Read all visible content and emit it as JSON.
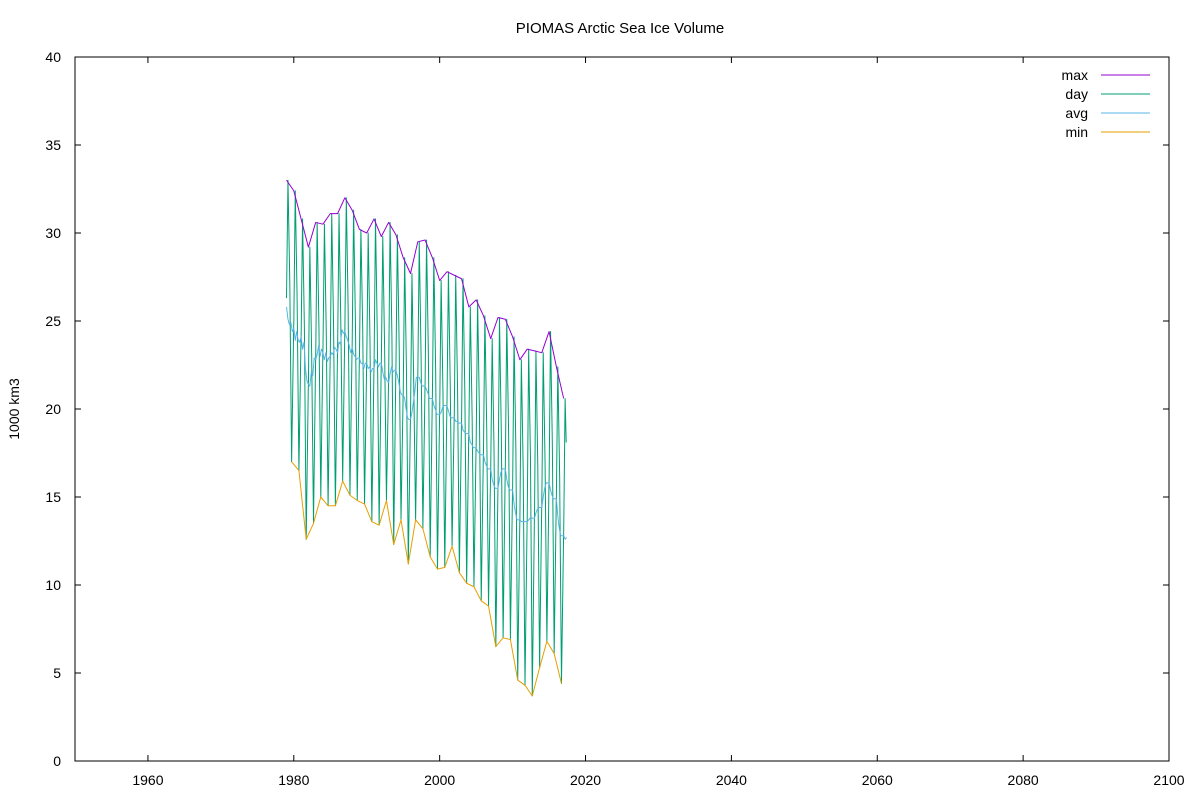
{
  "chart_data": {
    "type": "line",
    "title": "PIOMAS Arctic Sea Ice Volume",
    "xlabel": "",
    "ylabel": "1000 km3",
    "xlim": [
      1950,
      2100
    ],
    "ylim": [
      0,
      40
    ],
    "x_ticks": [
      1960,
      1980,
      2000,
      2020,
      2040,
      2060,
      2080,
      2100
    ],
    "y_ticks": [
      0,
      5,
      10,
      15,
      20,
      25,
      30,
      35,
      40
    ],
    "grid": false,
    "legend_position": "top-right",
    "series": [
      {
        "name": "max",
        "color": "#9400d3",
        "x": [
          1979,
          1980,
          1981,
          1982,
          1983,
          1984,
          1985,
          1986,
          1987,
          1988,
          1989,
          1990,
          1991,
          1992,
          1993,
          1994,
          1995,
          1996,
          1997,
          1998,
          1999,
          2000,
          2001,
          2002,
          2003,
          2004,
          2005,
          2006,
          2007,
          2008,
          2009,
          2010,
          2011,
          2012,
          2013,
          2014,
          2015,
          2016,
          2017
        ],
        "y": [
          33.0,
          32.4,
          30.8,
          29.2,
          30.6,
          30.5,
          31.1,
          31.1,
          32.0,
          31.3,
          30.2,
          30.0,
          30.8,
          29.8,
          30.6,
          29.9,
          28.6,
          27.7,
          29.5,
          29.6,
          28.6,
          27.3,
          27.8,
          27.6,
          27.4,
          25.8,
          26.2,
          25.3,
          24.0,
          25.2,
          25.1,
          24.1,
          22.8,
          23.4,
          23.3,
          23.2,
          24.4,
          22.4,
          20.6
        ]
      },
      {
        "name": "day",
        "color": "#009e73",
        "x": [
          1979.0,
          1979.2,
          1979.45,
          1979.7,
          1979.99,
          1980.0,
          1980.2,
          1980.45,
          1980.7,
          1980.99,
          1981.0,
          1981.2,
          1981.45,
          1981.7,
          1981.99,
          1982.0,
          1982.2,
          1982.45,
          1982.7,
          1982.99,
          1983.0,
          1983.2,
          1983.45,
          1983.7,
          1983.99,
          1984.0,
          1984.2,
          1984.45,
          1984.7,
          1984.99,
          1985.0,
          1985.2,
          1985.45,
          1985.7,
          1985.99,
          1986.0,
          1986.2,
          1986.45,
          1986.7,
          1986.99,
          1987.0,
          1987.2,
          1987.45,
          1987.7,
          1987.99,
          1988.0,
          1988.2,
          1988.45,
          1988.7,
          1988.99,
          1989.0,
          1989.2,
          1989.45,
          1989.7,
          1989.99,
          1990.0,
          1990.2,
          1990.45,
          1990.7,
          1990.99,
          1991.0,
          1991.2,
          1991.45,
          1991.7,
          1991.99,
          1992.0,
          1992.2,
          1992.45,
          1992.7,
          1992.99,
          1993.0,
          1993.2,
          1993.45,
          1993.7,
          1993.99,
          1994.0,
          1994.2,
          1994.45,
          1994.7,
          1994.99,
          1995.0,
          1995.2,
          1995.45,
          1995.7,
          1995.99,
          1996.0,
          1996.2,
          1996.45,
          1996.7,
          1996.99,
          1997.0,
          1997.2,
          1997.45,
          1997.7,
          1997.99,
          1998.0,
          1998.2,
          1998.45,
          1998.7,
          1998.99,
          1999.0,
          1999.2,
          1999.45,
          1999.7,
          1999.99,
          2000.0,
          2000.2,
          2000.45,
          2000.7,
          2000.99,
          2001.0,
          2001.2,
          2001.45,
          2001.7,
          2001.99,
          2002.0,
          2002.2,
          2002.45,
          2002.7,
          2002.99,
          2003.0,
          2003.2,
          2003.45,
          2003.7,
          2003.99,
          2004.0,
          2004.2,
          2004.45,
          2004.7,
          2004.99,
          2005.0,
          2005.2,
          2005.45,
          2005.7,
          2005.99,
          2006.0,
          2006.2,
          2006.45,
          2006.7,
          2006.99,
          2007.0,
          2007.2,
          2007.45,
          2007.7,
          2007.99,
          2008.0,
          2008.2,
          2008.45,
          2008.7,
          2008.99,
          2009.0,
          2009.2,
          2009.45,
          2009.7,
          2009.99,
          2010.0,
          2010.2,
          2010.45,
          2010.7,
          2010.99,
          2011.0,
          2011.2,
          2011.45,
          2011.7,
          2011.99,
          2012.0,
          2012.2,
          2012.45,
          2012.7,
          2012.99,
          2013.0,
          2013.2,
          2013.45,
          2013.7,
          2013.99,
          2014.0,
          2014.2,
          2014.45,
          2014.7,
          2014.99,
          2015.0,
          2015.2,
          2015.45,
          2015.7,
          2015.99,
          2016.0,
          2016.2,
          2016.45,
          2016.7,
          2016.99,
          2017.0,
          2017.2,
          2017.35
        ],
        "y": [
          26.3,
          33.0,
          27.2,
          17.0,
          24.8,
          24.8,
          32.4,
          26.4,
          16.5,
          24.0,
          24.0,
          30.8,
          24.7,
          12.6,
          21.3,
          21.3,
          29.2,
          23.1,
          13.5,
          22.8,
          22.8,
          30.6,
          24.6,
          15.0,
          23.4,
          23.4,
          30.5,
          24.4,
          14.5,
          22.9,
          22.9,
          31.1,
          24.8,
          14.5,
          23.1,
          23.1,
          31.1,
          24.8,
          15.9,
          24.4,
          24.4,
          32.0,
          25.7,
          15.1,
          23.5,
          23.5,
          31.3,
          24.9,
          14.8,
          22.9,
          22.9,
          30.2,
          24.5,
          14.6,
          22.6,
          22.6,
          30.0,
          23.8,
          13.6,
          22.3,
          22.3,
          30.8,
          24.2,
          13.4,
          22.6,
          22.6,
          29.8,
          23.5,
          14.8,
          21.5,
          21.5,
          30.6,
          24.2,
          12.3,
          22.2,
          22.2,
          29.9,
          23.5,
          13.7,
          20.8,
          20.8,
          28.6,
          22.1,
          11.2,
          19.4,
          19.4,
          27.7,
          21.3,
          13.7,
          21.8,
          21.8,
          29.5,
          23.1,
          13.2,
          21.3,
          21.3,
          29.6,
          23.2,
          11.6,
          20.6,
          20.6,
          28.6,
          22.2,
          10.9,
          19.7,
          19.7,
          27.3,
          21.0,
          11.0,
          20.2,
          20.2,
          27.8,
          21.4,
          12.2,
          19.5,
          19.5,
          27.6,
          21.2,
          10.7,
          19.2,
          19.2,
          27.4,
          21.0,
          10.1,
          18.6,
          18.6,
          25.8,
          19.6,
          9.9,
          17.8,
          17.8,
          26.2,
          19.8,
          9.1,
          17.4,
          17.4,
          25.3,
          18.9,
          8.8,
          16.6,
          16.6,
          24.0,
          17.8,
          6.5,
          15.5,
          15.5,
          25.2,
          18.7,
          7.0,
          16.6,
          16.6,
          25.1,
          18.7,
          6.9,
          15.4,
          15.4,
          24.1,
          17.7,
          4.6,
          13.7,
          13.7,
          22.8,
          16.6,
          4.3,
          13.6,
          13.6,
          23.4,
          17.2,
          3.7,
          13.8,
          13.8,
          23.3,
          16.9,
          5.3,
          14.4,
          14.4,
          23.2,
          17.0,
          6.8,
          15.8,
          15.8,
          24.4,
          18.0,
          6.1,
          14.9,
          14.9,
          22.4,
          16.2,
          4.4,
          12.8,
          12.8,
          20.6,
          18.1
        ]
      },
      {
        "name": "avg",
        "color": "#56b4e9",
        "x": [
          1979.0,
          1979.2,
          1979.4,
          1979.6,
          1979.8,
          1980.0,
          1980.2,
          1980.4,
          1980.6,
          1980.8,
          1981.0,
          1981.2,
          1981.4,
          1981.6,
          1981.8,
          1982.0,
          1982.2,
          1982.4,
          1982.6,
          1982.8,
          1983.0,
          1983.2,
          1983.4,
          1983.6,
          1983.8,
          1984.0,
          1984.2,
          1984.4,
          1984.6,
          1984.8,
          1985.0,
          1985.2,
          1985.4,
          1985.6,
          1985.8,
          1986.0,
          1986.2,
          1986.4,
          1986.6,
          1986.8,
          1987.0,
          1987.2,
          1987.4,
          1987.6,
          1987.8,
          1988.0,
          1988.2,
          1988.4,
          1988.6,
          1988.8,
          1989.0,
          1989.2,
          1989.4,
          1989.6,
          1989.8,
          1990.0,
          1990.2,
          1990.4,
          1990.6,
          1990.8,
          1991.0,
          1991.2,
          1991.4,
          1991.6,
          1991.8,
          1992.0,
          1992.2,
          1992.4,
          1992.6,
          1992.8,
          1993.0,
          1993.2,
          1993.4,
          1993.6,
          1993.8,
          1994.0,
          1994.2,
          1994.4,
          1994.6,
          1994.8,
          1995.0,
          1995.2,
          1995.4,
          1995.6,
          1995.8,
          1996.0,
          1996.2,
          1996.4,
          1996.6,
          1996.8,
          1997.0,
          1997.2,
          1997.4,
          1997.6,
          1997.8,
          1998.0,
          1998.2,
          1998.4,
          1998.6,
          1998.8,
          1999.0,
          1999.2,
          1999.4,
          1999.6,
          1999.8,
          2000.0,
          2000.2,
          2000.4,
          2000.6,
          2000.8,
          2001.0,
          2001.2,
          2001.4,
          2001.6,
          2001.8,
          2002.0,
          2002.2,
          2002.4,
          2002.6,
          2002.8,
          2003.0,
          2003.2,
          2003.4,
          2003.6,
          2003.8,
          2004.0,
          2004.2,
          2004.4,
          2004.6,
          2004.8,
          2005.0,
          2005.2,
          2005.4,
          2005.6,
          2005.8,
          2006.0,
          2006.2,
          2006.4,
          2006.6,
          2006.8,
          2007.0,
          2007.2,
          2007.4,
          2007.6,
          2007.8,
          2008.0,
          2008.2,
          2008.4,
          2008.6,
          2008.8,
          2009.0,
          2009.2,
          2009.4,
          2009.6,
          2009.8,
          2010.0,
          2010.2,
          2010.4,
          2010.6,
          2010.8,
          2011.0,
          2011.2,
          2011.4,
          2011.6,
          2011.8,
          2012.0,
          2012.2,
          2012.4,
          2012.6,
          2012.8,
          2013.0,
          2013.2,
          2013.4,
          2013.6,
          2013.8,
          2014.0,
          2014.2,
          2014.4,
          2014.6,
          2014.8,
          2015.0,
          2015.2,
          2015.4,
          2015.6,
          2015.8,
          2016.0,
          2016.2,
          2016.4,
          2016.6,
          2016.8,
          2017.0,
          2017.2,
          2017.4
        ],
        "y": [
          25.8,
          25.1,
          24.8,
          24.9,
          24.4,
          24.6,
          23.9,
          24.4,
          23.9,
          23.8,
          24.1,
          23.4,
          23.8,
          22.3,
          21.6,
          21.4,
          21.3,
          22.1,
          21.9,
          22.9,
          22.8,
          23.1,
          23.6,
          23.0,
          23.4,
          23.2,
          22.8,
          23.2,
          22.7,
          22.9,
          23.0,
          23.2,
          23.1,
          23.5,
          23.4,
          23.2,
          23.8,
          23.7,
          24.5,
          24.3,
          24.4,
          24.1,
          23.9,
          23.6,
          23.2,
          23.5,
          23.1,
          23.0,
          22.8,
          22.9,
          22.9,
          22.6,
          22.6,
          22.3,
          22.6,
          22.6,
          22.3,
          22.4,
          22.1,
          22.3,
          22.3,
          22.8,
          22.6,
          22.4,
          22.6,
          22.6,
          22.1,
          21.7,
          21.8,
          21.6,
          21.5,
          22.0,
          22.4,
          22.1,
          22.2,
          22.2,
          21.9,
          21.5,
          21.0,
          20.8,
          20.8,
          20.6,
          20.0,
          19.5,
          19.4,
          19.4,
          19.8,
          20.4,
          21.0,
          21.8,
          21.8,
          21.8,
          21.5,
          21.3,
          21.3,
          21.3,
          21.1,
          20.9,
          20.6,
          20.6,
          20.6,
          20.2,
          20.0,
          19.7,
          19.7,
          19.7,
          19.8,
          20.1,
          20.2,
          20.2,
          20.2,
          19.9,
          19.6,
          19.5,
          19.5,
          19.5,
          19.3,
          19.3,
          19.2,
          19.2,
          19.2,
          18.8,
          18.7,
          18.6,
          18.6,
          18.6,
          18.1,
          18.0,
          17.8,
          17.8,
          17.8,
          17.6,
          17.5,
          17.4,
          17.4,
          17.4,
          17.0,
          16.8,
          16.6,
          16.6,
          16.6,
          16.0,
          15.7,
          15.5,
          15.5,
          15.5,
          16.0,
          16.4,
          16.6,
          16.6,
          16.6,
          16.0,
          15.6,
          15.4,
          15.4,
          15.4,
          14.6,
          14.1,
          13.7,
          13.7,
          13.7,
          13.6,
          13.6,
          13.6,
          13.6,
          13.6,
          13.7,
          13.8,
          13.8,
          13.8,
          13.8,
          14.1,
          14.3,
          14.4,
          14.4,
          14.4,
          15.0,
          15.5,
          15.8,
          15.8,
          15.8,
          15.4,
          15.1,
          14.9,
          14.9,
          14.9,
          13.9,
          13.2,
          12.8,
          12.8,
          12.8,
          12.6,
          12.7
        ]
      },
      {
        "name": "min",
        "color": "#e69f00",
        "x": [
          1979.7,
          1980.7,
          1981.7,
          1982.7,
          1983.7,
          1984.7,
          1985.7,
          1986.7,
          1987.7,
          1988.7,
          1989.7,
          1990.7,
          1991.7,
          1992.7,
          1993.7,
          1994.7,
          1995.7,
          1996.7,
          1997.7,
          1998.7,
          1999.7,
          2000.7,
          2001.7,
          2002.7,
          2003.7,
          2004.7,
          2005.7,
          2006.7,
          2007.7,
          2008.7,
          2009.7,
          2010.7,
          2011.7,
          2012.7,
          2013.7,
          2014.7,
          2015.7,
          2016.7
        ],
        "y": [
          17.0,
          16.5,
          12.6,
          13.5,
          15.0,
          14.5,
          14.5,
          15.9,
          15.1,
          14.8,
          14.6,
          13.6,
          13.4,
          14.8,
          12.3,
          13.7,
          11.2,
          13.7,
          13.2,
          11.6,
          10.9,
          11.0,
          12.2,
          10.7,
          10.1,
          9.9,
          9.1,
          8.8,
          6.5,
          7.0,
          6.9,
          4.6,
          4.3,
          3.7,
          5.3,
          6.8,
          6.1,
          4.4
        ]
      }
    ]
  }
}
